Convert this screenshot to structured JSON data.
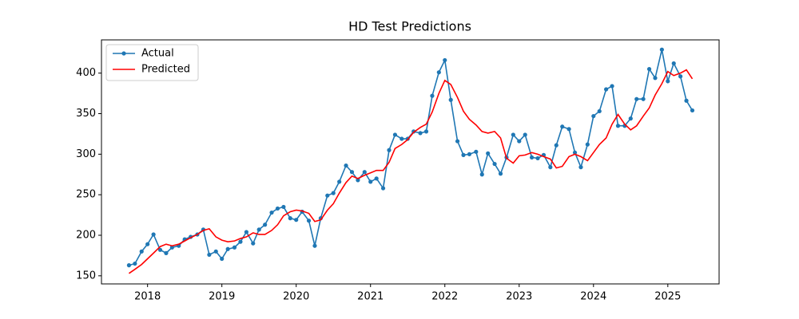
{
  "chart_data": {
    "type": "line",
    "title": "HD Test Predictions",
    "x": [
      2017.75,
      2017.83,
      2017.92,
      2018.0,
      2018.08,
      2018.17,
      2018.25,
      2018.33,
      2018.42,
      2018.5,
      2018.58,
      2018.67,
      2018.75,
      2018.83,
      2018.92,
      2019.0,
      2019.08,
      2019.17,
      2019.25,
      2019.33,
      2019.42,
      2019.5,
      2019.58,
      2019.67,
      2019.75,
      2019.83,
      2019.92,
      2020.0,
      2020.08,
      2020.17,
      2020.25,
      2020.33,
      2020.42,
      2020.5,
      2020.58,
      2020.67,
      2020.75,
      2020.83,
      2020.92,
      2021.0,
      2021.08,
      2021.17,
      2021.25,
      2021.33,
      2021.42,
      2021.5,
      2021.58,
      2021.67,
      2021.75,
      2021.83,
      2021.92,
      2022.0,
      2022.08,
      2022.17,
      2022.25,
      2022.33,
      2022.42,
      2022.5,
      2022.58,
      2022.67,
      2022.75,
      2022.83,
      2022.92,
      2023.0,
      2023.08,
      2023.17,
      2023.25,
      2023.33,
      2023.42,
      2023.5,
      2023.58,
      2023.67,
      2023.75,
      2023.83,
      2023.92,
      2024.0,
      2024.08,
      2024.17,
      2024.25,
      2024.33,
      2024.42,
      2024.5,
      2024.58,
      2024.67,
      2024.75,
      2024.83,
      2024.92,
      2025.0,
      2025.08,
      2025.17,
      2025.25,
      2025.33
    ],
    "series": [
      {
        "name": "Actual",
        "color": "#1f77b4",
        "markers": true,
        "values": [
          163,
          165,
          180,
          189,
          201,
          182,
          178,
          185,
          187,
          195,
          198,
          201,
          207,
          176,
          180,
          171,
          183,
          185,
          192,
          204,
          190,
          207,
          213,
          228,
          233,
          235,
          221,
          219,
          229,
          218,
          187,
          221,
          249,
          252,
          266,
          286,
          278,
          268,
          278,
          266,
          270,
          258,
          305,
          324,
          319,
          319,
          328,
          326,
          328,
          372,
          401,
          416,
          367,
          316,
          299,
          300,
          303,
          275,
          301,
          288,
          276,
          296,
          324,
          316,
          324,
          296,
          295,
          299,
          284,
          311,
          334,
          331,
          302,
          284,
          312,
          347,
          353,
          380,
          384,
          335,
          335,
          344,
          368,
          368,
          405,
          394,
          429,
          390,
          412,
          396,
          366,
          354
        ]
      },
      {
        "name": "Predicted",
        "color": "#ff0000",
        "markers": false,
        "values": [
          153,
          158,
          164,
          171,
          178,
          186,
          189,
          187,
          189,
          193,
          197,
          201,
          206,
          208,
          198,
          194,
          192,
          193,
          196,
          198,
          203,
          201,
          201,
          206,
          213,
          224,
          229,
          231,
          230,
          227,
          217,
          219,
          231,
          239,
          252,
          265,
          273,
          270,
          274,
          277,
          280,
          280,
          290,
          307,
          312,
          318,
          327,
          333,
          337,
          352,
          375,
          391,
          386,
          370,
          353,
          343,
          336,
          328,
          326,
          328,
          320,
          295,
          289,
          298,
          299,
          302,
          300,
          297,
          294,
          283,
          285,
          297,
          300,
          297,
          292,
          302,
          312,
          320,
          337,
          349,
          337,
          330,
          335,
          347,
          357,
          373,
          387,
          402,
          397,
          400,
          404,
          393
        ]
      }
    ],
    "xlim": [
      2017.38,
      2025.69
    ],
    "xticks": [
      2018,
      2019,
      2020,
      2021,
      2022,
      2023,
      2024,
      2025
    ],
    "ylim": [
      140,
      441
    ],
    "yticks": [
      150,
      200,
      250,
      300,
      350,
      400
    ],
    "legend": "upper left"
  }
}
